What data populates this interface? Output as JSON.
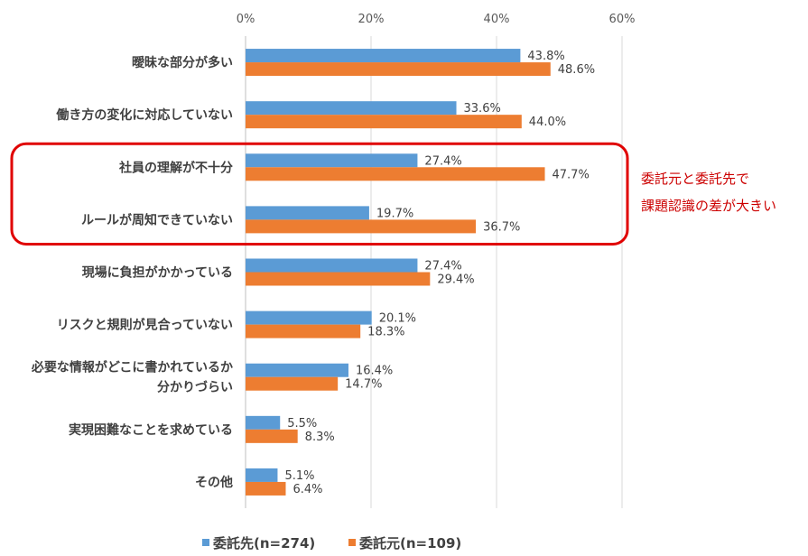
{
  "chart_data": {
    "type": "bar",
    "orientation": "horizontal",
    "categories": [
      [
        "曖昧な部分が多い"
      ],
      [
        "働き方の変化に対応していない"
      ],
      [
        "社員の理解が不十分"
      ],
      [
        "ルールが周知できていない"
      ],
      [
        "現場に負担がかかっている"
      ],
      [
        "リスクと規則が見合っていない"
      ],
      [
        "必要な情報がどこに書かれているか",
        "分かりづらい"
      ],
      [
        "実現困難なことを求めている"
      ],
      [
        "その他"
      ]
    ],
    "series": [
      {
        "name": "委託先(n=274)",
        "color": "#5b9bd5",
        "values": [
          43.8,
          33.6,
          27.4,
          19.7,
          27.4,
          20.1,
          16.4,
          5.5,
          5.1
        ]
      },
      {
        "name": "委託元(n=109)",
        "color": "#ed7d31",
        "values": [
          48.6,
          44.0,
          47.7,
          36.7,
          29.4,
          18.3,
          14.7,
          8.3,
          6.4
        ]
      }
    ],
    "value_format": "%",
    "xlim": [
      0,
      60
    ],
    "xticks": [
      "0%",
      "20%",
      "40%",
      "60%"
    ],
    "xtick_values": [
      0,
      20,
      40,
      60
    ],
    "grid": true,
    "legend_position": "bottom",
    "highlight": {
      "categories": [
        2,
        3
      ],
      "color": "#e00000",
      "note": [
        "委託元と委託先で",
        "課題認識の差が大きい"
      ]
    }
  }
}
